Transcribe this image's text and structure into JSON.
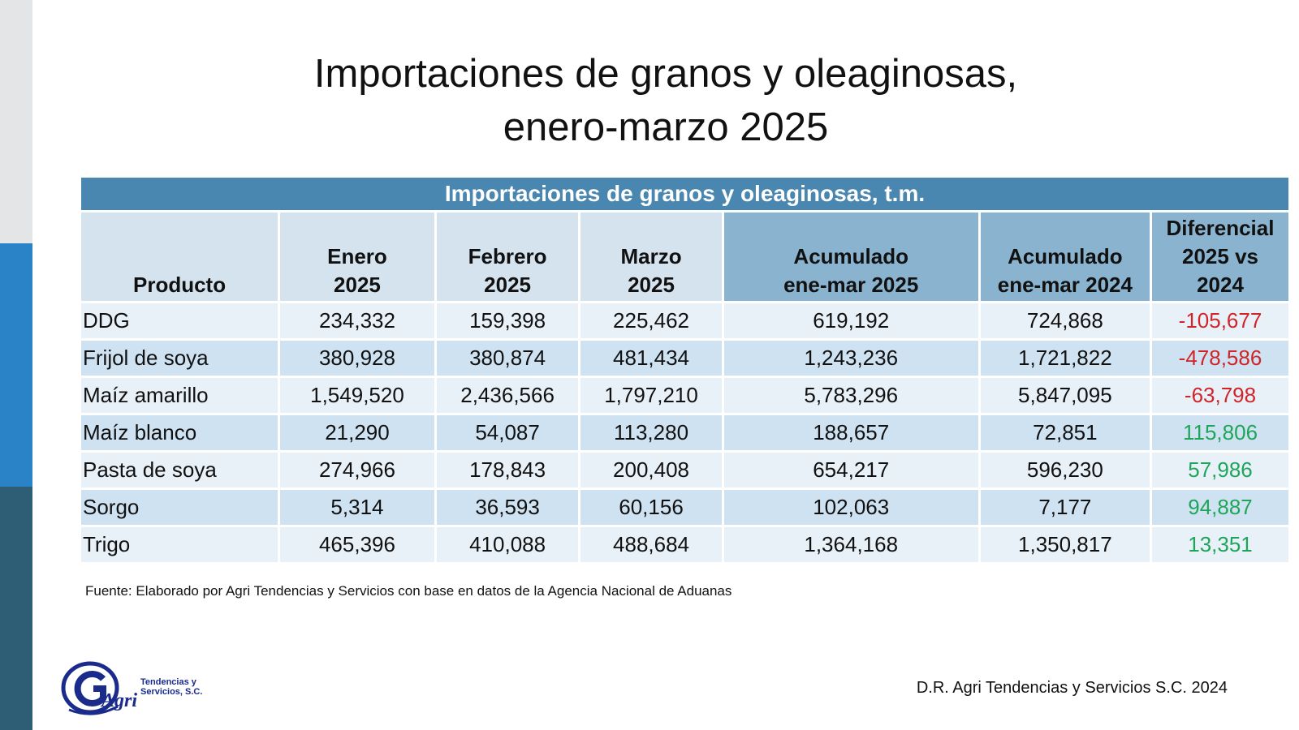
{
  "slide": {
    "title_line1": "Importaciones de granos y oleaginosas,",
    "title_line2": "enero-marzo 2025"
  },
  "table": {
    "caption": "Importaciones de granos y oleaginosas, t.m.",
    "headers": {
      "producto": "Producto",
      "enero_l1": "Enero",
      "enero_l2": "2025",
      "febrero_l1": "Febrero",
      "febrero_l2": "2025",
      "marzo_l1": "Marzo",
      "marzo_l2": "2025",
      "acum25_l1": "Acumulado",
      "acum25_l2": "ene-mar 2025",
      "acum24_l1": "Acumulado",
      "acum24_l2": "ene-mar 2024",
      "dif_l1": "Diferencial",
      "dif_l2": "2025 vs",
      "dif_l3": "2024"
    },
    "rows": [
      {
        "producto": "DDG",
        "enero": "234,332",
        "febrero": "159,398",
        "marzo": "225,462",
        "acum_2025": "619,192",
        "acum_2024": "724,868",
        "diferencial": "-105,677"
      },
      {
        "producto": "Frijol de soya",
        "enero": "380,928",
        "febrero": "380,874",
        "marzo": "481,434",
        "acum_2025": "1,243,236",
        "acum_2024": "1,721,822",
        "diferencial": "-478,586"
      },
      {
        "producto": "Maíz amarillo",
        "enero": "1,549,520",
        "febrero": "2,436,566",
        "marzo": "1,797,210",
        "acum_2025": "5,783,296",
        "acum_2024": "5,847,095",
        "diferencial": "-63,798"
      },
      {
        "producto": "Maíz blanco",
        "enero": "21,290",
        "febrero": "54,087",
        "marzo": "113,280",
        "acum_2025": "188,657",
        "acum_2024": "72,851",
        "diferencial": "115,806"
      },
      {
        "producto": "Pasta de soya",
        "enero": "274,966",
        "febrero": "178,843",
        "marzo": "200,408",
        "acum_2025": "654,217",
        "acum_2024": "596,230",
        "diferencial": "57,986"
      },
      {
        "producto": "Sorgo",
        "enero": "5,314",
        "febrero": "36,593",
        "marzo": "60,156",
        "acum_2025": "102,063",
        "acum_2024": "7,177",
        "diferencial": "94,887"
      },
      {
        "producto": "Trigo",
        "enero": "465,396",
        "febrero": "410,088",
        "marzo": "488,684",
        "acum_2025": "1,364,168",
        "acum_2024": "1,350,817",
        "diferencial": "13,351"
      }
    ]
  },
  "source": "Fuente: Elaborado por Agri Tendencias y Servicios con base en datos de la Agencia Nacional de Aduanas",
  "copyright": "D.R. Agri Tendencias y Servicios S.C. 2024",
  "logo": {
    "text": "Agri",
    "line1": "Tendencias y",
    "line2": "Servicios, S.C."
  },
  "colors": {
    "header_band": "#4a87b0",
    "negative": "#d1242a",
    "positive": "#1fa55a",
    "sidebar_top": "#e3e5e7",
    "sidebar_mid": "#2a83c6",
    "sidebar_bottom": "#2e5d76"
  }
}
